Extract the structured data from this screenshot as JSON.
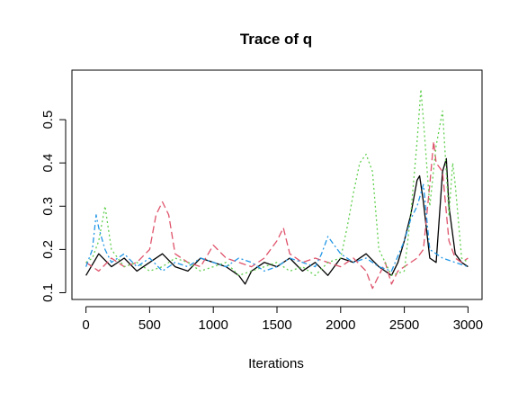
{
  "chart_data": {
    "type": "line",
    "title": "Trace of q",
    "xlabel": "Iterations",
    "ylabel": "",
    "xlim": [
      0,
      3000
    ],
    "ylim": [
      0.1,
      0.57
    ],
    "x_ticks": [
      0,
      500,
      1000,
      1500,
      2000,
      2500,
      3000
    ],
    "y_ticks": [
      0.1,
      0.2,
      0.3,
      0.4,
      0.5
    ],
    "x_tick_labels": [
      "0",
      "500",
      "1000",
      "1500",
      "2000",
      "2500",
      "3000"
    ],
    "y_tick_labels": [
      "0.1",
      "0.2",
      "0.3",
      "0.4",
      "0.5"
    ],
    "grid": false,
    "legend": "none",
    "series": [
      {
        "color": "#000000",
        "dash": "solid",
        "x": [
          0,
          100,
          200,
          300,
          400,
          500,
          600,
          700,
          800,
          900,
          1000,
          1100,
          1200,
          1250,
          1300,
          1400,
          1500,
          1600,
          1700,
          1800,
          1900,
          2000,
          2100,
          2200,
          2300,
          2400,
          2450,
          2500,
          2550,
          2600,
          2620,
          2650,
          2700,
          2750,
          2800,
          2830,
          2850,
          2900,
          2950,
          3000
        ],
        "y": [
          0.14,
          0.19,
          0.16,
          0.18,
          0.15,
          0.17,
          0.19,
          0.16,
          0.15,
          0.18,
          0.17,
          0.16,
          0.14,
          0.12,
          0.15,
          0.17,
          0.16,
          0.18,
          0.15,
          0.17,
          0.14,
          0.18,
          0.17,
          0.19,
          0.16,
          0.14,
          0.17,
          0.22,
          0.28,
          0.36,
          0.37,
          0.31,
          0.18,
          0.17,
          0.38,
          0.41,
          0.3,
          0.19,
          0.17,
          0.16
        ]
      },
      {
        "color": "#DF536B",
        "dash": "8,4",
        "x": [
          0,
          100,
          200,
          300,
          400,
          500,
          550,
          600,
          650,
          700,
          800,
          900,
          1000,
          1100,
          1200,
          1300,
          1400,
          1500,
          1550,
          1600,
          1700,
          1800,
          1900,
          2000,
          2100,
          2200,
          2250,
          2300,
          2350,
          2400,
          2450,
          2500,
          2550,
          2600,
          2650,
          2700,
          2730,
          2750,
          2800,
          2850,
          2900,
          2950,
          3000
        ],
        "y": [
          0.17,
          0.15,
          0.18,
          0.16,
          0.17,
          0.2,
          0.28,
          0.31,
          0.28,
          0.19,
          0.17,
          0.16,
          0.21,
          0.18,
          0.17,
          0.16,
          0.18,
          0.22,
          0.25,
          0.19,
          0.17,
          0.18,
          0.17,
          0.16,
          0.18,
          0.15,
          0.11,
          0.14,
          0.17,
          0.12,
          0.15,
          0.16,
          0.17,
          0.18,
          0.2,
          0.35,
          0.45,
          0.4,
          0.38,
          0.22,
          0.18,
          0.17,
          0.18
        ]
      },
      {
        "color": "#61D04F",
        "dash": "2,3",
        "x": [
          0,
          50,
          100,
          150,
          200,
          300,
          400,
          500,
          600,
          700,
          800,
          900,
          1000,
          1100,
          1200,
          1300,
          1400,
          1500,
          1600,
          1700,
          1800,
          1900,
          2000,
          2050,
          2100,
          2150,
          2200,
          2250,
          2300,
          2400,
          2500,
          2550,
          2600,
          2630,
          2650,
          2700,
          2750,
          2800,
          2850,
          2880,
          2900,
          2950,
          3000
        ],
        "y": [
          0.17,
          0.18,
          0.22,
          0.3,
          0.2,
          0.16,
          0.17,
          0.15,
          0.16,
          0.18,
          0.17,
          0.15,
          0.16,
          0.17,
          0.14,
          0.15,
          0.16,
          0.17,
          0.15,
          0.16,
          0.14,
          0.17,
          0.18,
          0.25,
          0.33,
          0.4,
          0.42,
          0.38,
          0.2,
          0.14,
          0.15,
          0.28,
          0.45,
          0.57,
          0.5,
          0.3,
          0.44,
          0.52,
          0.28,
          0.4,
          0.35,
          0.18,
          0.17
        ]
      },
      {
        "color": "#2297E6",
        "dash": "6,3,2,3",
        "x": [
          0,
          50,
          80,
          100,
          150,
          200,
          300,
          400,
          500,
          600,
          700,
          800,
          900,
          1000,
          1100,
          1200,
          1300,
          1400,
          1500,
          1600,
          1700,
          1800,
          1850,
          1900,
          2000,
          2100,
          2200,
          2300,
          2400,
          2500,
          2550,
          2600,
          2650,
          2700,
          2800,
          2900,
          3000
        ],
        "y": [
          0.16,
          0.2,
          0.28,
          0.25,
          0.2,
          0.17,
          0.19,
          0.16,
          0.18,
          0.15,
          0.17,
          0.16,
          0.18,
          0.17,
          0.16,
          0.18,
          0.17,
          0.15,
          0.16,
          0.18,
          0.17,
          0.16,
          0.19,
          0.23,
          0.19,
          0.17,
          0.18,
          0.16,
          0.15,
          0.22,
          0.27,
          0.3,
          0.35,
          0.2,
          0.18,
          0.17,
          0.16
        ]
      }
    ]
  }
}
